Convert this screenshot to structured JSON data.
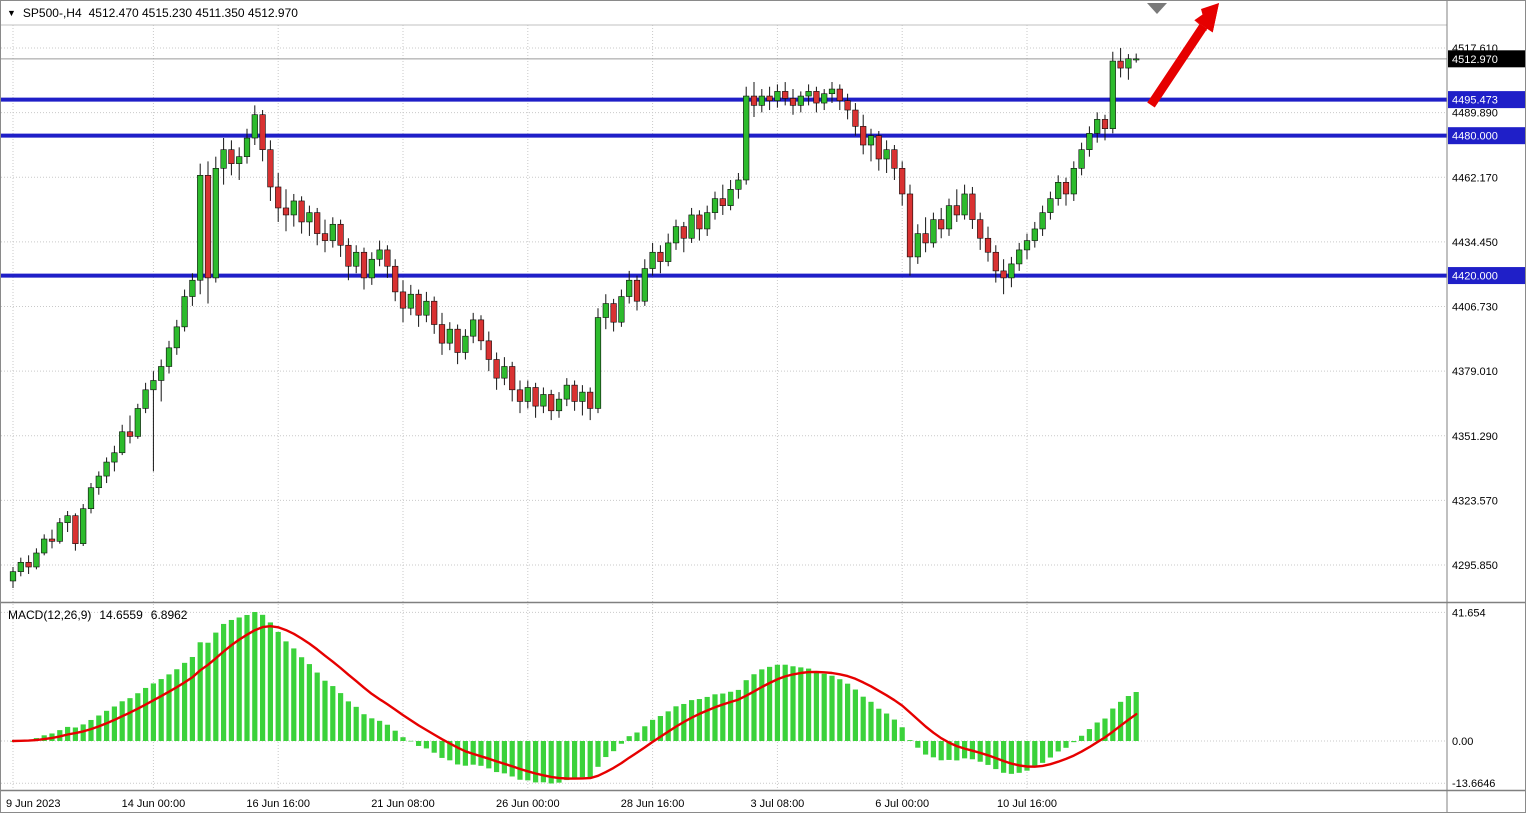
{
  "header": {
    "dropdown_icon": "▼",
    "symbol": "SP500-,H4",
    "ohlc": "4512.470 4515.230 4511.350 4512.970"
  },
  "chart_data": {
    "type": "candlestick",
    "symbol": "SP500",
    "timeframe": "H4",
    "ohlc_display": {
      "open": "4512.470",
      "high": "4515.230",
      "low": "4511.350",
      "close": "4512.970"
    },
    "price_axis": {
      "ticks": [
        "4517.610",
        "4489.890",
        "4462.170",
        "4434.450",
        "4406.730",
        "4379.010",
        "4351.290",
        "4323.570",
        "4295.850"
      ],
      "current_price": {
        "value": 4512.97,
        "label": "4512.970"
      },
      "levels": [
        {
          "value": 4495.473,
          "label": "4495.473"
        },
        {
          "value": 4480.0,
          "label": "4480.000"
        },
        {
          "value": 4420.0,
          "label": "4420.000"
        }
      ]
    },
    "time_axis": [
      {
        "label": "9 Jun 2023",
        "bar": 0
      },
      {
        "label": "14 Jun 00:00",
        "bar": 18
      },
      {
        "label": "16 Jun 16:00",
        "bar": 34
      },
      {
        "label": "21 Jun 08:00",
        "bar": 50
      },
      {
        "label": "26 Jun 00:00",
        "bar": 66
      },
      {
        "label": "28 Jun 16:00",
        "bar": 82
      },
      {
        "label": "3 Jul 08:00",
        "bar": 98
      },
      {
        "label": "6 Jul 00:00",
        "bar": 114
      },
      {
        "label": "10 Jul 16:00",
        "bar": 130
      }
    ],
    "candles": [
      [
        4289,
        4295,
        4286,
        4293
      ],
      [
        4293,
        4299,
        4291,
        4297
      ],
      [
        4297,
        4300,
        4292,
        4295
      ],
      [
        4295,
        4303,
        4294,
        4301
      ],
      [
        4301,
        4309,
        4300,
        4307
      ],
      [
        4307,
        4311,
        4303,
        4306
      ],
      [
        4306,
        4316,
        4305,
        4314
      ],
      [
        4314,
        4319,
        4310,
        4317
      ],
      [
        4317,
        4318,
        4302,
        4305
      ],
      [
        4305,
        4322,
        4304,
        4320
      ],
      [
        4320,
        4331,
        4318,
        4329
      ],
      [
        4329,
        4336,
        4326,
        4334
      ],
      [
        4334,
        4342,
        4331,
        4340
      ],
      [
        4340,
        4347,
        4336,
        4344
      ],
      [
        4344,
        4356,
        4343,
        4353
      ],
      [
        4353,
        4360,
        4348,
        4351
      ],
      [
        4351,
        4365,
        4350,
        4363
      ],
      [
        4363,
        4374,
        4361,
        4371
      ],
      [
        4371,
        4379,
        4336,
        4375
      ],
      [
        4375,
        4384,
        4366,
        4381
      ],
      [
        4381,
        4392,
        4378,
        4389
      ],
      [
        4389,
        4401,
        4386,
        4398
      ],
      [
        4398,
        4414,
        4396,
        4411
      ],
      [
        4411,
        4421,
        4407,
        4418
      ],
      [
        4418,
        4468,
        4412,
        4463
      ],
      [
        4463,
        4469,
        4408,
        4419
      ],
      [
        4419,
        4471,
        4417,
        4466
      ],
      [
        4466,
        4479,
        4459,
        4474
      ],
      [
        4474,
        4478,
        4463,
        4468
      ],
      [
        4468,
        4475,
        4461,
        4471
      ],
      [
        4471,
        4483,
        4468,
        4479
      ],
      [
        4479,
        4493,
        4476,
        4489
      ],
      [
        4489,
        4491,
        4469,
        4474
      ],
      [
        4474,
        4478,
        4452,
        4458
      ],
      [
        4458,
        4464,
        4443,
        4449
      ],
      [
        4449,
        4457,
        4439,
        4446
      ],
      [
        4446,
        4455,
        4441,
        4452
      ],
      [
        4452,
        4454,
        4438,
        4443
      ],
      [
        4443,
        4450,
        4437,
        4447
      ],
      [
        4447,
        4449,
        4433,
        4438
      ],
      [
        4438,
        4444,
        4430,
        4435
      ],
      [
        4435,
        4445,
        4432,
        4442
      ],
      [
        4442,
        4444,
        4428,
        4433
      ],
      [
        4433,
        4436,
        4418,
        4424
      ],
      [
        4424,
        4433,
        4421,
        4430
      ],
      [
        4430,
        4432,
        4414,
        4419
      ],
      [
        4419,
        4430,
        4416,
        4427
      ],
      [
        4427,
        4435,
        4424,
        4431
      ],
      [
        4431,
        4433,
        4419,
        4424
      ],
      [
        4424,
        4427,
        4409,
        4413
      ],
      [
        4413,
        4418,
        4400,
        4406
      ],
      [
        4406,
        4416,
        4403,
        4412
      ],
      [
        4412,
        4414,
        4398,
        4403
      ],
      [
        4403,
        4413,
        4400,
        4409
      ],
      [
        4409,
        4411,
        4395,
        4399
      ],
      [
        4399,
        4404,
        4386,
        4391
      ],
      [
        4391,
        4400,
        4388,
        4397
      ],
      [
        4397,
        4399,
        4382,
        4387
      ],
      [
        4387,
        4397,
        4384,
        4394
      ],
      [
        4394,
        4404,
        4391,
        4401
      ],
      [
        4401,
        4403,
        4388,
        4392
      ],
      [
        4392,
        4396,
        4379,
        4384
      ],
      [
        4384,
        4387,
        4371,
        4376
      ],
      [
        4376,
        4385,
        4373,
        4381
      ],
      [
        4381,
        4383,
        4366,
        4371
      ],
      [
        4371,
        4375,
        4361,
        4366
      ],
      [
        4366,
        4375,
        4363,
        4372
      ],
      [
        4372,
        4374,
        4359,
        4364
      ],
      [
        4364,
        4372,
        4361,
        4369
      ],
      [
        4369,
        4371,
        4358,
        4362
      ],
      [
        4362,
        4370,
        4359,
        4367
      ],
      [
        4367,
        4376,
        4364,
        4373
      ],
      [
        4373,
        4375,
        4362,
        4366
      ],
      [
        4366,
        4373,
        4360,
        4370
      ],
      [
        4370,
        4372,
        4358,
        4363
      ],
      [
        4363,
        4406,
        4361,
        4402
      ],
      [
        4402,
        4412,
        4397,
        4408
      ],
      [
        4408,
        4410,
        4396,
        4400
      ],
      [
        4400,
        4414,
        4398,
        4411
      ],
      [
        4411,
        4422,
        4408,
        4418
      ],
      [
        4418,
        4420,
        4405,
        4409
      ],
      [
        4409,
        4427,
        4407,
        4423
      ],
      [
        4423,
        4434,
        4420,
        4430
      ],
      [
        4430,
        4433,
        4421,
        4426
      ],
      [
        4426,
        4438,
        4424,
        4434
      ],
      [
        4434,
        4444,
        4431,
        4441
      ],
      [
        4441,
        4443,
        4430,
        4436
      ],
      [
        4436,
        4449,
        4434,
        4446
      ],
      [
        4446,
        4448,
        4435,
        4440
      ],
      [
        4440,
        4450,
        4437,
        4447
      ],
      [
        4447,
        4456,
        4444,
        4453
      ],
      [
        4453,
        4459,
        4446,
        4450
      ],
      [
        4450,
        4461,
        4448,
        4457
      ],
      [
        4457,
        4464,
        4453,
        4461
      ],
      [
        4461,
        4501,
        4459,
        4497
      ],
      [
        4497,
        4503,
        4488,
        4493
      ],
      [
        4493,
        4500,
        4490,
        4497
      ],
      [
        4497,
        4501,
        4491,
        4495
      ],
      [
        4495,
        4502,
        4492,
        4499
      ],
      [
        4499,
        4503,
        4493,
        4496
      ],
      [
        4496,
        4500,
        4489,
        4493
      ],
      [
        4493,
        4499,
        4490,
        4497
      ],
      [
        4497,
        4502,
        4493,
        4499
      ],
      [
        4499,
        4501,
        4490,
        4494
      ],
      [
        4494,
        4500,
        4491,
        4498
      ],
      [
        4498,
        4503,
        4494,
        4500
      ],
      [
        4500,
        4502,
        4491,
        4495
      ],
      [
        4495,
        4498,
        4487,
        4491
      ],
      [
        4491,
        4494,
        4480,
        4484
      ],
      [
        4484,
        4489,
        4472,
        4476
      ],
      [
        4476,
        4483,
        4469,
        4480
      ],
      [
        4480,
        4482,
        4465,
        4470
      ],
      [
        4470,
        4478,
        4464,
        4474
      ],
      [
        4474,
        4476,
        4461,
        4466
      ],
      [
        4466,
        4469,
        4450,
        4455
      ],
      [
        4455,
        4459,
        4420,
        4428
      ],
      [
        4428,
        4442,
        4425,
        4438
      ],
      [
        4438,
        4445,
        4430,
        4434
      ],
      [
        4434,
        4447,
        4432,
        4444
      ],
      [
        4444,
        4449,
        4436,
        4440
      ],
      [
        4440,
        4453,
        4437,
        4450
      ],
      [
        4450,
        4457,
        4443,
        4446
      ],
      [
        4446,
        4459,
        4444,
        4455
      ],
      [
        4455,
        4458,
        4440,
        4444
      ],
      [
        4444,
        4447,
        4431,
        4436
      ],
      [
        4436,
        4441,
        4426,
        4430
      ],
      [
        4430,
        4433,
        4417,
        4422
      ],
      [
        4422,
        4427,
        4412,
        4419
      ],
      [
        4419,
        4428,
        4415,
        4425
      ],
      [
        4425,
        4434,
        4422,
        4431
      ],
      [
        4431,
        4438,
        4427,
        4435
      ],
      [
        4435,
        4443,
        4432,
        4440
      ],
      [
        4440,
        4450,
        4437,
        4447
      ],
      [
        4447,
        4456,
        4444,
        4453
      ],
      [
        4453,
        4463,
        4450,
        4460
      ],
      [
        4460,
        4462,
        4450,
        4455
      ],
      [
        4455,
        4469,
        4452,
        4466
      ],
      [
        4466,
        4477,
        4463,
        4474
      ],
      [
        4474,
        4484,
        4471,
        4481
      ],
      [
        4481,
        4490,
        4477,
        4487
      ],
      [
        4487,
        4489,
        4478,
        4483
      ],
      [
        4483,
        4516,
        4481,
        4512
      ],
      [
        4512,
        4517.6,
        4505,
        4509
      ],
      [
        4509,
        4515,
        4504,
        4513
      ],
      [
        4512.47,
        4515.23,
        4511.35,
        4512.97
      ]
    ],
    "macd": {
      "label": "MACD(12,26,9)",
      "fast": 12,
      "slow": 26,
      "signal_period": 9,
      "main_value": "14.6559",
      "signal_value": "6.8962",
      "axis": [
        {
          "label": "41.654",
          "value": 41.654
        },
        {
          "label": "0.00",
          "value": 0
        },
        {
          "label": "-13.6646",
          "value": -13.6646
        }
      ]
    },
    "annotations": {
      "trend_arrow": {
        "direction": "up-right",
        "color": "#e60000"
      },
      "chart_shift_marker": {
        "shape": "down-triangle",
        "color": "#7a7a7a"
      }
    },
    "colors": {
      "bull": "#2dbb2d",
      "bear": "#d93232",
      "wick": "#141414",
      "histogram": "#3bd23b",
      "signal_line": "#e60000",
      "level_line": "#1f1fc8",
      "grid": "#c9c9c9",
      "current_price_bg": "#000000",
      "separator": "#808080",
      "top_border": "#c0c0c0"
    }
  }
}
